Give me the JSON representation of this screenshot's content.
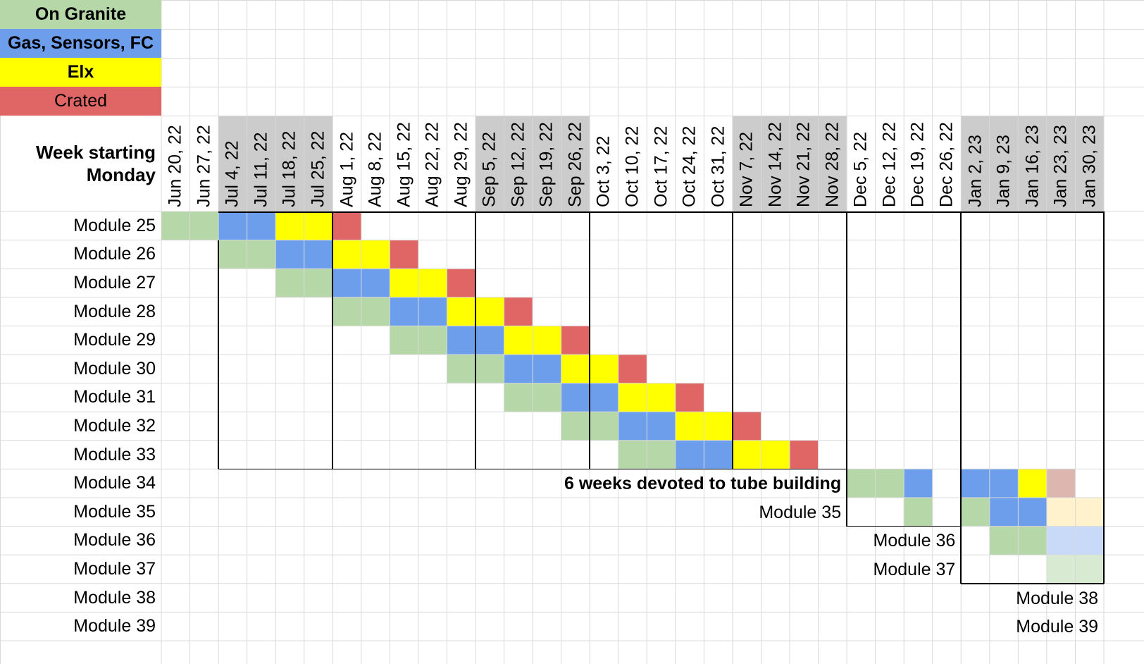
{
  "legend": [
    {
      "label": "On Granite",
      "status": "granite",
      "bold": true
    },
    {
      "label": "Gas, Sensors, FC",
      "status": "gas",
      "bold": true
    },
    {
      "label": "Elx",
      "status": "elx",
      "bold": true
    },
    {
      "label": "Crated",
      "status": "crated",
      "bold": false
    }
  ],
  "colors": {
    "granite": "#b6d7a8",
    "gas": "#6d9eeb",
    "elx": "#ffff00",
    "crated": "#e06666",
    "elx_faded": "#dcb7b0",
    "yellow_faded": "#fff2cc",
    "blue_faded": "#c9daf8",
    "green_faded": "#d9ead3",
    "header_highlight": "#cccccc",
    "grid": "#d9d9d9"
  },
  "header": {
    "corner_line1": "Week starting",
    "corner_line2": "Monday",
    "weeks": [
      "Jun 20, 22",
      "Jun 27, 22",
      "Jul 4, 22",
      "Jul 11, 22",
      "Jul 18, 22",
      "Jul 25, 22",
      "Aug 1, 22",
      "Aug 8, 22",
      "Aug 15, 22",
      "Aug 22, 22",
      "Aug 29, 22",
      "Sep 5, 22",
      "Sep 12, 22",
      "Sep 19, 22",
      "Sep 26, 22",
      "Oct 3, 22",
      "Oct 10, 22",
      "Oct 17, 22",
      "Oct 24, 22",
      "Oct 31, 22",
      "Nov 7, 22",
      "Nov 14, 22",
      "Nov 21, 22",
      "Nov 28, 22",
      "Dec 5, 22",
      "Dec 12, 22",
      "Dec 19, 22",
      "Dec 26, 22",
      "Jan 2, 23",
      "Jan 9, 23",
      "Jan 16, 23",
      "Jan 23, 23",
      "Jan 30, 23"
    ],
    "shaded_weeks": [
      2,
      3,
      4,
      5,
      11,
      12,
      13,
      14,
      20,
      21,
      22,
      23,
      28,
      29,
      30,
      31,
      32
    ]
  },
  "modules": [
    {
      "label": "Module 25",
      "cells": {
        "0": "granite",
        "1": "granite",
        "2": "gas",
        "3": "gas",
        "4": "elx",
        "5": "elx",
        "6": "crated"
      }
    },
    {
      "label": "Module 26",
      "cells": {
        "2": "granite",
        "3": "granite",
        "4": "gas",
        "5": "gas",
        "6": "elx",
        "7": "elx",
        "8": "crated"
      }
    },
    {
      "label": "Module 27",
      "cells": {
        "4": "granite",
        "5": "granite",
        "6": "gas",
        "7": "gas",
        "8": "elx",
        "9": "elx",
        "10": "crated"
      }
    },
    {
      "label": "Module 28",
      "cells": {
        "6": "granite",
        "7": "granite",
        "8": "gas",
        "9": "gas",
        "10": "elx",
        "11": "elx",
        "12": "crated"
      }
    },
    {
      "label": "Module 29",
      "cells": {
        "8": "granite",
        "9": "granite",
        "10": "gas",
        "11": "gas",
        "12": "elx",
        "13": "elx",
        "14": "crated"
      }
    },
    {
      "label": "Module 30",
      "cells": {
        "10": "granite",
        "11": "granite",
        "12": "gas",
        "13": "gas",
        "14": "elx",
        "15": "elx",
        "16": "crated"
      }
    },
    {
      "label": "Module 31",
      "cells": {
        "12": "granite",
        "13": "granite",
        "14": "gas",
        "15": "gas",
        "16": "elx",
        "17": "elx",
        "18": "crated"
      }
    },
    {
      "label": "Module 32",
      "cells": {
        "14": "granite",
        "15": "granite",
        "16": "gas",
        "17": "gas",
        "18": "elx",
        "19": "elx",
        "20": "crated"
      }
    },
    {
      "label": "Module 33",
      "cells": {
        "16": "granite",
        "17": "granite",
        "18": "gas",
        "19": "gas",
        "20": "elx",
        "21": "elx",
        "22": "crated"
      }
    },
    {
      "label": "Module 34",
      "cells": {
        "24": "granite",
        "25": "granite",
        "26": "gas",
        "28": "gas",
        "29": "gas",
        "30": "elx",
        "31": "elx_faded"
      }
    },
    {
      "label": "Module 35",
      "cells": {
        "26": "granite",
        "28": "granite",
        "29": "gas",
        "30": "gas",
        "31": "yellow_faded",
        "32": "yellow_faded"
      }
    },
    {
      "label": "Module 36",
      "cells": {
        "29": "granite",
        "30": "granite",
        "31": "blue_faded",
        "32": "blue_faded"
      }
    },
    {
      "label": "Module 37",
      "cells": {
        "31": "green_faded",
        "32": "green_faded"
      }
    },
    {
      "label": "Module 38",
      "cells": {}
    },
    {
      "label": "Module 39",
      "cells": {}
    }
  ],
  "annotations": [
    {
      "text": "6 weeks devoted to tube building",
      "row": 9,
      "end_col": 23,
      "bold": true
    },
    {
      "text": "Module 35",
      "row": 10,
      "end_col": 23,
      "bold": false
    },
    {
      "text": "Module 36",
      "row": 11,
      "end_col": 27,
      "bold": false
    },
    {
      "text": "Module 37",
      "row": 12,
      "end_col": 27,
      "bold": false
    },
    {
      "text": "Module 38",
      "row": 13,
      "end_col": 32,
      "bold": false
    },
    {
      "text": "Module 39",
      "row": 14,
      "end_col": 32,
      "bold": false
    }
  ]
}
